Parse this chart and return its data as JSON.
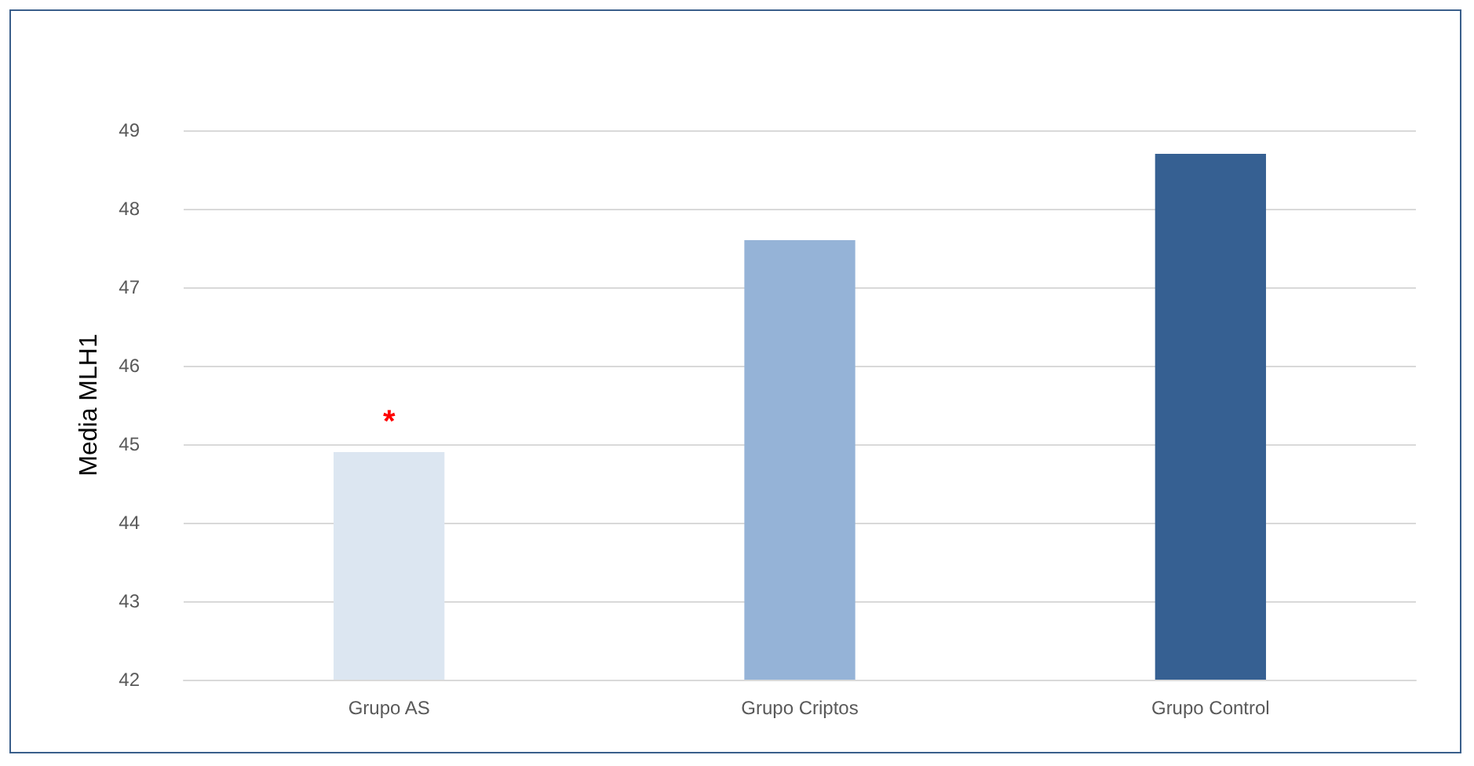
{
  "chart_data": {
    "type": "bar",
    "ylabel": "Media MLH1",
    "categories": [
      "Grupo AS",
      "Grupo Criptos",
      "Grupo Control"
    ],
    "values": [
      44.9,
      47.6,
      48.7
    ],
    "colors": [
      "#dce6f1",
      "#95b3d7",
      "#366092"
    ],
    "ylim": [
      42,
      49
    ],
    "yticks": [
      42,
      43,
      44,
      45,
      46,
      47,
      48,
      49
    ],
    "grid": "y",
    "annotations": [
      {
        "text": "*",
        "x": "Grupo AS",
        "y": 44.9
      }
    ]
  }
}
